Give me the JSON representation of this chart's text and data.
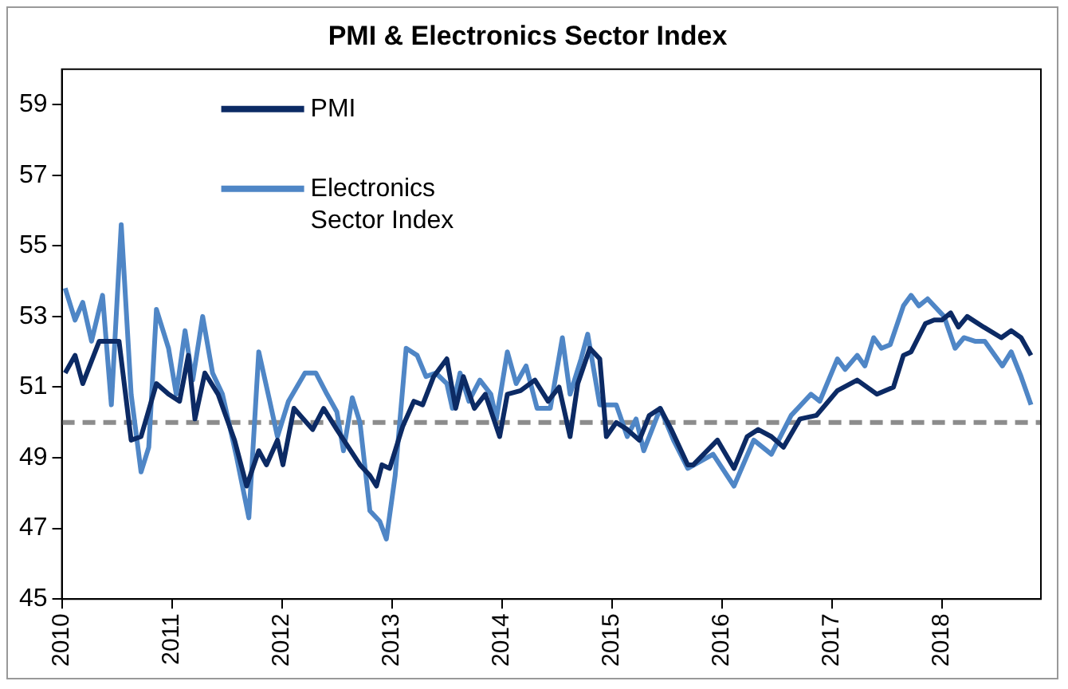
{
  "chart_data": {
    "type": "line",
    "title": "PMI & Electronics Sector Index",
    "series": [
      {
        "name": "PMI",
        "color": "#0c2a64",
        "x": [
          2010.03,
          2010.12,
          2010.19,
          2010.34,
          2010.52,
          2010.63,
          2010.72,
          2010.86,
          2010.97,
          2011.07,
          2011.15,
          2011.21,
          2011.3,
          2011.42,
          2011.57,
          2011.68,
          2011.79,
          2011.86,
          2011.96,
          2012.01,
          2012.11,
          2012.28,
          2012.38,
          2012.5,
          2012.71,
          2012.8,
          2012.86,
          2012.91,
          2012.98,
          2013.1,
          2013.2,
          2013.28,
          2013.38,
          2013.5,
          2013.58,
          2013.65,
          2013.75,
          2013.85,
          2013.98,
          2014.05,
          2014.17,
          2014.3,
          2014.42,
          2014.52,
          2014.62,
          2014.69,
          2014.8,
          2014.89,
          2014.95,
          2015.04,
          2015.14,
          2015.25,
          2015.34,
          2015.44,
          2015.54,
          2015.69,
          2015.74,
          2015.96,
          2016.11,
          2016.23,
          2016.33,
          2016.45,
          2016.56,
          2016.71,
          2016.86,
          2017.05,
          2017.23,
          2017.41,
          2017.56,
          2017.65,
          2017.72,
          2017.85,
          2017.93,
          2018.0,
          2018.08,
          2018.15,
          2018.23,
          2018.38,
          2018.54,
          2018.63,
          2018.72,
          2018.81
        ],
        "values": [
          51.4,
          51.9,
          51.1,
          52.3,
          52.3,
          49.5,
          49.6,
          51.1,
          50.8,
          50.6,
          51.9,
          50.1,
          51.4,
          50.8,
          49.5,
          48.2,
          49.2,
          48.8,
          49.5,
          48.8,
          50.4,
          49.8,
          50.4,
          49.8,
          48.8,
          48.5,
          48.2,
          48.8,
          48.7,
          49.9,
          50.6,
          50.5,
          51.3,
          51.8,
          50.4,
          51.3,
          50.4,
          50.8,
          49.6,
          50.8,
          50.9,
          51.2,
          50.6,
          51.0,
          49.6,
          51.1,
          52.1,
          51.8,
          49.6,
          50.0,
          49.8,
          49.5,
          50.2,
          50.4,
          49.8,
          48.8,
          48.8,
          49.5,
          48.7,
          49.6,
          49.8,
          49.6,
          49.3,
          50.1,
          50.2,
          50.9,
          51.2,
          50.8,
          51.0,
          51.9,
          52.0,
          52.8,
          52.9,
          52.9,
          53.1,
          52.7,
          53.0,
          52.7,
          52.4,
          52.6,
          52.4,
          51.9
        ]
      },
      {
        "name": "Electronics Sector Index",
        "color": "#4f86c6",
        "x": [
          2010.03,
          2010.12,
          2010.19,
          2010.27,
          2010.37,
          2010.45,
          2010.54,
          2010.63,
          2010.72,
          2010.79,
          2010.86,
          2010.97,
          2011.04,
          2011.12,
          2011.19,
          2011.28,
          2011.37,
          2011.46,
          2011.59,
          2011.7,
          2011.79,
          2011.89,
          2011.96,
          2012.06,
          2012.21,
          2012.31,
          2012.41,
          2012.5,
          2012.56,
          2012.64,
          2012.71,
          2012.8,
          2012.89,
          2012.95,
          2013.03,
          2013.13,
          2013.23,
          2013.31,
          2013.4,
          2013.5,
          2013.55,
          2013.62,
          2013.7,
          2013.8,
          2013.9,
          2013.95,
          2014.05,
          2014.13,
          2014.22,
          2014.32,
          2014.44,
          2014.55,
          2014.62,
          2014.72,
          2014.78,
          2014.89,
          2015.04,
          2015.14,
          2015.22,
          2015.29,
          2015.44,
          2015.56,
          2015.69,
          2015.92,
          2016.11,
          2016.29,
          2016.45,
          2016.63,
          2016.81,
          2016.89,
          2017.05,
          2017.12,
          2017.23,
          2017.3,
          2017.38,
          2017.45,
          2017.53,
          2017.65,
          2017.72,
          2017.79,
          2017.87,
          2018.02,
          2018.12,
          2018.2,
          2018.3,
          2018.39,
          2018.55,
          2018.63,
          2018.72,
          2018.81
        ],
        "values": [
          53.8,
          52.9,
          53.4,
          52.3,
          53.6,
          50.5,
          55.6,
          50.8,
          48.6,
          49.3,
          53.2,
          52.1,
          50.8,
          52.6,
          51.2,
          53.0,
          51.4,
          50.8,
          49.0,
          47.3,
          52.0,
          50.6,
          49.6,
          50.6,
          51.4,
          51.4,
          50.8,
          50.3,
          49.2,
          50.7,
          50.0,
          47.5,
          47.2,
          46.7,
          48.5,
          52.1,
          51.9,
          51.3,
          51.4,
          51.1,
          50.4,
          51.4,
          50.6,
          51.2,
          50.8,
          50.1,
          52.0,
          51.1,
          51.6,
          50.4,
          50.4,
          52.4,
          50.8,
          51.8,
          52.5,
          50.5,
          50.5,
          49.6,
          50.1,
          49.2,
          50.4,
          49.5,
          48.7,
          49.1,
          48.2,
          49.5,
          49.1,
          50.2,
          50.8,
          50.6,
          51.8,
          51.5,
          51.9,
          51.6,
          52.4,
          52.1,
          52.2,
          53.3,
          53.6,
          53.3,
          53.5,
          53.0,
          52.1,
          52.4,
          52.3,
          52.3,
          51.6,
          52.0,
          51.3,
          50.5
        ]
      }
    ],
    "xlim": [
      2010,
      2018.9
    ],
    "xticks": [
      2010,
      2011,
      2012,
      2013,
      2014,
      2015,
      2016,
      2017,
      2018
    ],
    "ylim": [
      45,
      60
    ],
    "yticks": [
      45,
      47,
      49,
      51,
      53,
      55,
      57,
      59
    ],
    "ref_lines": [
      {
        "axis": "y",
        "value": 50,
        "color": "#8c8c8c",
        "line_style": "dashed"
      }
    ],
    "legend": "top left",
    "grid": false,
    "marker": "none",
    "line_style": "solid"
  }
}
